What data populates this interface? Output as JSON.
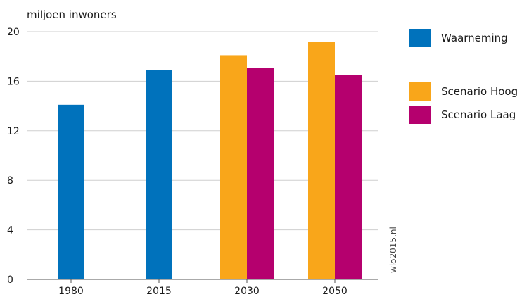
{
  "chart_data": {
    "type": "bar",
    "ylabel": "miljoen inwoners",
    "ylim": [
      0,
      20
    ],
    "yticks": [
      0,
      4,
      8,
      12,
      16,
      20
    ],
    "grid": true,
    "legend_position": "right",
    "categories": [
      "1980",
      "2015",
      "2030",
      "2050"
    ],
    "series": [
      {
        "name": "Waarneming",
        "color": "#0072BC",
        "values": [
          14.1,
          16.9,
          null,
          null
        ]
      },
      {
        "name": "Scenario Hoog",
        "color": "#F9A61A",
        "values": [
          null,
          null,
          18.1,
          19.2
        ]
      },
      {
        "name": "Scenario Laag",
        "color": "#B5006E",
        "values": [
          null,
          null,
          17.1,
          16.5
        ]
      }
    ],
    "source": "wlo2015.nl"
  }
}
